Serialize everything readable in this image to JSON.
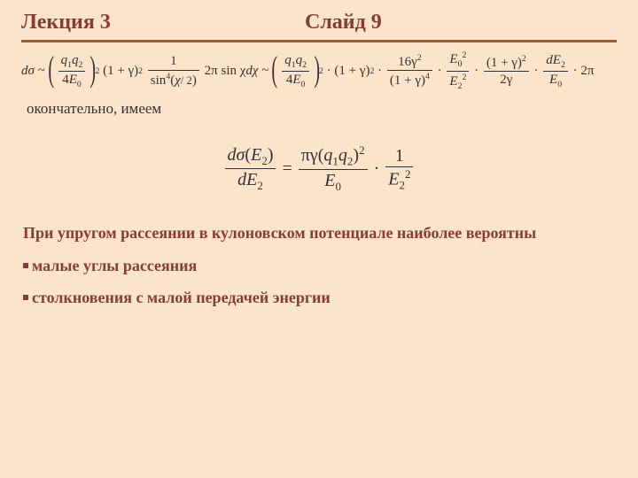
{
  "colors": {
    "background": "#fbe4ca",
    "heading_text": "#863b37",
    "rule": "#a35a2b",
    "body_text": "#333333",
    "bullet": "#863b37"
  },
  "typography": {
    "family": "Times New Roman",
    "heading_size_pt": 24,
    "heading_weight": "bold",
    "eq_size_pt": 15,
    "eq_center_size_pt": 20,
    "note_size_pt": 17,
    "conclusion_size_pt": 18,
    "conclusion_weight": "bold"
  },
  "header": {
    "lecture": "Лекция 3",
    "slide": "Слайд 9"
  },
  "eq1": {
    "dsigma": "dσ",
    "tilde": "~",
    "q1q2": "q",
    "sub1": "1",
    "sub2": "2",
    "four": "4",
    "E0": "E",
    "E0sub": "0",
    "sq": "2",
    "one": "1",
    "plus": "+",
    "gamma": "γ",
    "oneNum": "1",
    "sin4": "sin",
    "sin4exp": "4",
    "chi": "χ",
    "half": "/ 2",
    "twopi": "2π",
    "sinchi": "sin χ",
    "dchi": "dχ",
    "sixteen": "16",
    "gamma2": "γ",
    "E2": "E",
    "E2sub": "2",
    "twogamma": "2γ",
    "dE2": "dE",
    "dE2sub": "2",
    "cdot": "·"
  },
  "note1": "окончательно, имеем",
  "eq2": {
    "dsigma": "dσ",
    "E2": "E",
    "E2sub": "2",
    "dE2": "dE",
    "eq": "=",
    "pi": "π",
    "gamma": "γ",
    "q1q2": "q",
    "sub1": "1",
    "sub2": "2",
    "sq": "2",
    "E0": "E",
    "E0sub": "0",
    "cdot": "·",
    "one": "1"
  },
  "conclusion": {
    "intro": "При упругом рассеянии в кулоновском потенциале наиболее вероятны",
    "b1": "малые углы рассеяния",
    "b2": "столкновения с малой передачей энергии"
  }
}
